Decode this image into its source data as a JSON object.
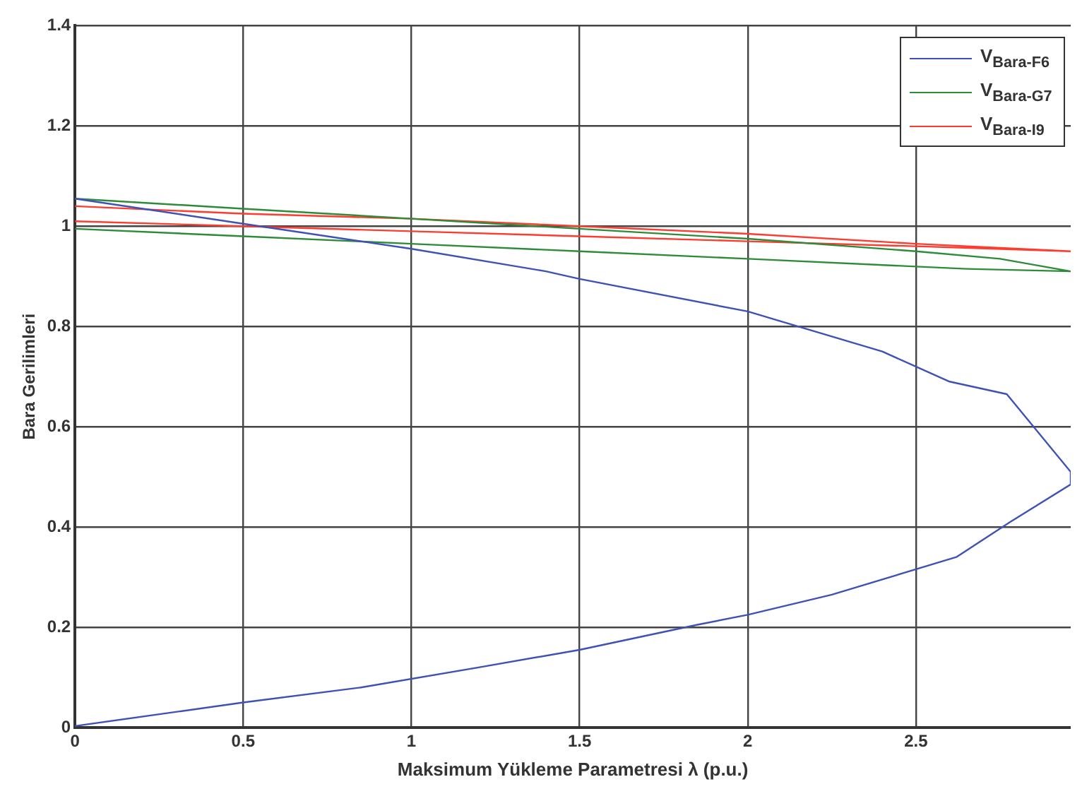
{
  "chart_data": {
    "type": "line",
    "xlabel": "Maksimum Yükleme Parametresi λ (p.u.)",
    "ylabel": "Bara Gerilimleri",
    "xlim": [
      0,
      2.96
    ],
    "xticks": [
      0,
      0.5,
      1,
      1.5,
      2,
      2.5
    ],
    "ylim": [
      0,
      1.4
    ],
    "yticks": [
      0,
      0.2,
      0.4,
      0.6,
      0.8,
      1,
      1.2,
      1.4
    ],
    "grid": true,
    "legend": "top right",
    "marker": "none",
    "line_style": "solid",
    "series": [
      {
        "name": "V$_{Bara-F6}$",
        "color": "#3f51b5",
        "x": [
          0,
          0.5,
          0.85,
          1,
          1.4,
          1.5,
          2,
          2.1,
          2.25,
          2.4,
          2.6,
          2.77,
          2.96,
          2.96,
          2.78,
          2.62,
          2.25,
          2,
          1.85,
          1.5,
          1.2,
          0.85,
          0.5,
          0
        ],
        "values": [
          1.055,
          1.005,
          0.97,
          0.955,
          0.91,
          0.895,
          0.83,
          0.81,
          0.78,
          0.75,
          0.69,
          0.665,
          0.51,
          0.485,
          0.41,
          0.34,
          0.265,
          0.225,
          0.205,
          0.155,
          0.12,
          0.08,
          0.05,
          0.003
        ]
      },
      {
        "name": "V$_{Bara-G7}$",
        "color": "#2e8b3a",
        "x": [
          0,
          0.5,
          1,
          1.5,
          2,
          2.5,
          2.75,
          2.96,
          2.65,
          2,
          1.5,
          1,
          0.5,
          0
        ],
        "values": [
          1.055,
          1.035,
          1.015,
          0.995,
          0.975,
          0.95,
          0.935,
          0.91,
          0.915,
          0.935,
          0.95,
          0.965,
          0.98,
          0.995
        ]
      },
      {
        "name": "V$_{Bara-I9}$",
        "color": "#ff3b2f",
        "x": [
          0,
          0.5,
          1,
          1.5,
          2,
          2.5,
          2.96,
          2.5,
          2,
          1.5,
          1,
          0.5,
          0
        ],
        "values": [
          1.04,
          1.025,
          1.015,
          1.0,
          0.985,
          0.965,
          0.95,
          0.96,
          0.97,
          0.98,
          0.99,
          1.0,
          1.01
        ]
      }
    ]
  }
}
